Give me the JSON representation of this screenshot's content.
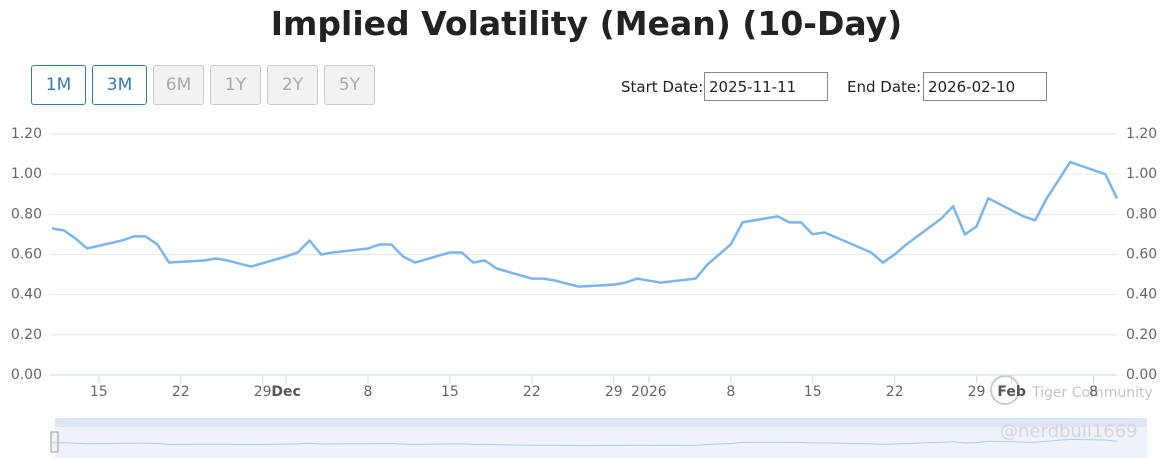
{
  "chart_data": {
    "type": "line",
    "title": "Implied Volatility (Mean) (10-Day)",
    "x": [
      "2025-11-11",
      "2025-11-12",
      "2025-11-13",
      "2025-11-14",
      "2025-11-17",
      "2025-11-18",
      "2025-11-19",
      "2025-11-20",
      "2025-11-21",
      "2025-11-24",
      "2025-11-25",
      "2025-11-26",
      "2025-11-28",
      "2025-12-01",
      "2025-12-02",
      "2025-12-03",
      "2025-12-04",
      "2025-12-05",
      "2025-12-08",
      "2025-12-09",
      "2025-12-10",
      "2025-12-11",
      "2025-12-12",
      "2025-12-15",
      "2025-12-16",
      "2025-12-17",
      "2025-12-18",
      "2025-12-19",
      "2025-12-22",
      "2025-12-23",
      "2025-12-24",
      "2025-12-26",
      "2025-12-29",
      "2025-12-30",
      "2025-12-31",
      "2026-01-02",
      "2026-01-05",
      "2026-01-06",
      "2026-01-07",
      "2026-01-08",
      "2026-01-09",
      "2026-01-12",
      "2026-01-13",
      "2026-01-14",
      "2026-01-15",
      "2026-01-16",
      "2026-01-20",
      "2026-01-21",
      "2026-01-22",
      "2026-01-23",
      "2026-01-26",
      "2026-01-27",
      "2026-01-28",
      "2026-01-29",
      "2026-01-30",
      "2026-02-02",
      "2026-02-03",
      "2026-02-04",
      "2026-02-05",
      "2026-02-06",
      "2026-02-09",
      "2026-02-10"
    ],
    "series": [
      {
        "color": "#7cb5ec",
        "values": [
          0.73,
          0.72,
          0.68,
          0.63,
          0.67,
          0.69,
          0.69,
          0.65,
          0.56,
          0.57,
          0.58,
          0.57,
          0.54,
          0.59,
          0.61,
          0.67,
          0.6,
          0.61,
          0.63,
          0.65,
          0.65,
          0.59,
          0.56,
          0.61,
          0.61,
          0.56,
          0.57,
          0.53,
          0.48,
          0.48,
          0.47,
          0.44,
          0.45,
          0.46,
          0.48,
          0.46,
          0.48,
          0.55,
          0.6,
          0.65,
          0.76,
          0.79,
          0.76,
          0.76,
          0.7,
          0.71,
          0.61,
          0.56,
          0.6,
          0.65,
          0.78,
          0.84,
          0.7,
          0.74,
          0.88,
          0.79,
          0.77,
          0.88,
          0.97,
          1.06,
          1.0,
          0.88
        ]
      }
    ],
    "xlim": [
      "2025-11-11",
      "2026-02-10"
    ],
    "xticks": [
      {
        "value": "2025-11-15",
        "label": "15"
      },
      {
        "value": "2025-11-22",
        "label": "22"
      },
      {
        "value": "2025-11-29",
        "label": "29"
      },
      {
        "value": "2025-12-01",
        "label": "Dec"
      },
      {
        "value": "2025-12-08",
        "label": "8"
      },
      {
        "value": "2025-12-15",
        "label": "15"
      },
      {
        "value": "2025-12-22",
        "label": "22"
      },
      {
        "value": "2025-12-29",
        "label": "29"
      },
      {
        "value": "2026-01-01",
        "label": "2026"
      },
      {
        "value": "2026-01-08",
        "label": "8"
      },
      {
        "value": "2026-01-15",
        "label": "15"
      },
      {
        "value": "2026-01-22",
        "label": "22"
      },
      {
        "value": "2026-01-29",
        "label": "29"
      },
      {
        "value": "2026-02-01",
        "label": "Feb"
      },
      {
        "value": "2026-02-08",
        "label": "8"
      }
    ],
    "ylim": [
      0,
      1.2
    ],
    "yticks": [
      {
        "value": 0,
        "label": "0.00"
      },
      {
        "value": 0.2,
        "label": "0.20"
      },
      {
        "value": 0.4,
        "label": "0.40"
      },
      {
        "value": 0.6,
        "label": "0.60"
      },
      {
        "value": 0.8,
        "label": "0.80"
      },
      {
        "value": 1,
        "label": "1.00"
      },
      {
        "value": 1.2,
        "label": "1.20"
      }
    ],
    "y2lim": [
      0,
      1.2
    ],
    "y2ticks": [
      {
        "value": 0,
        "label": "0.00"
      },
      {
        "value": 0.2,
        "label": "0.20"
      },
      {
        "value": 0.4,
        "label": "0.40"
      },
      {
        "value": 0.6,
        "label": "0.60"
      },
      {
        "value": 0.8,
        "label": "0.80"
      },
      {
        "value": 1,
        "label": "1.00"
      },
      {
        "value": 1.2,
        "label": "1.20"
      }
    ],
    "grid": true
  },
  "controls": {
    "buttons": [
      {
        "label": "1M",
        "enabled": true
      },
      {
        "label": "3M",
        "enabled": true
      },
      {
        "label": "6M",
        "enabled": false
      },
      {
        "label": "1Y",
        "enabled": false
      },
      {
        "label": "2Y",
        "enabled": false
      },
      {
        "label": "5Y",
        "enabled": false
      }
    ],
    "start_label": "Start Date:",
    "start_value": "2025-11-11",
    "end_label": "End Date:",
    "end_value": "2026-02-10"
  },
  "watermark": {
    "brand": "Tiger Community",
    "user": "@nerdbull1669"
  }
}
